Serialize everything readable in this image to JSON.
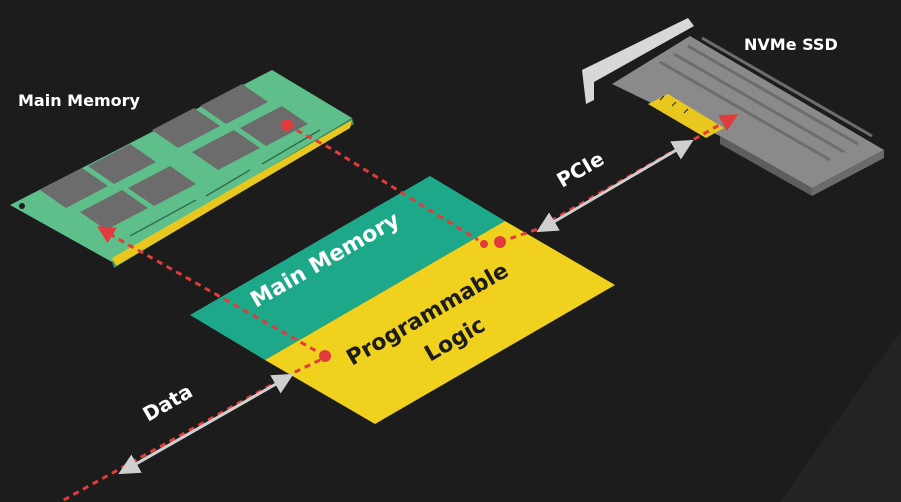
{
  "colors": {
    "background": "#1c1c1c",
    "memory_block": "#1ea88a",
    "logic_block": "#f0d21e",
    "ram_board": "#5fbf8a",
    "ram_chip": "#6c6c6c",
    "ram_contacts": "#e8c81e",
    "ssd_metal": "#8a8a8a",
    "ssd_bracket": "#d8d8d8",
    "data_path": "#e23b3b",
    "link_arrow": "#cfcfcf"
  },
  "labels": {
    "main_memory_module": "Main Memory",
    "nvme_ssd": "NVMe SSD",
    "pcie": "PCIe",
    "data": "Data"
  },
  "blocks": {
    "memory": "Main Memory",
    "logic_line1": "Programmable",
    "logic_line2": "Logic"
  },
  "icons": {
    "ram": "ram-module-icon",
    "ssd": "nvme-ssd-icon"
  }
}
